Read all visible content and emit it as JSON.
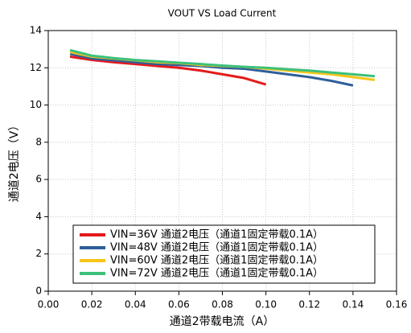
{
  "chart_data": {
    "type": "line",
    "title": "VOUT VS Load Current",
    "xlabel": "通道2带载电流（A）",
    "ylabel": "通道2电压（V）",
    "xlim": [
      0,
      0.16
    ],
    "xticks": [
      {
        "value": 0,
        "label": "0.00"
      },
      {
        "value": 0.02,
        "label": "0.02"
      },
      {
        "value": 0.04,
        "label": "0.04"
      },
      {
        "value": 0.06,
        "label": "0.06"
      },
      {
        "value": 0.08,
        "label": "0.08"
      },
      {
        "value": 0.1,
        "label": "0.10"
      },
      {
        "value": 0.12,
        "label": "0.12"
      },
      {
        "value": 0.14,
        "label": "0.14"
      },
      {
        "value": 0.16,
        "label": "0.16"
      }
    ],
    "ylim": [
      0,
      14
    ],
    "yticks": [
      0,
      2,
      4,
      6,
      8,
      10,
      12,
      14
    ],
    "grid": true,
    "legend": "lower center",
    "series": [
      {
        "name": "VIN=36V 通道2电压（通道1固定带载0.1A）",
        "color": "#e41a1c",
        "x": [
          0.01,
          0.02,
          0.03,
          0.04,
          0.05,
          0.06,
          0.07,
          0.08,
          0.09,
          0.1
        ],
        "values": [
          12.6,
          12.42,
          12.3,
          12.2,
          12.1,
          12.0,
          11.85,
          11.65,
          11.45,
          11.1
        ]
      },
      {
        "name": "VIN=48V 通道2电压（通道1固定带载0.1A）",
        "color": "#2e5f9a",
        "x": [
          0.01,
          0.02,
          0.03,
          0.04,
          0.05,
          0.06,
          0.07,
          0.08,
          0.09,
          0.1,
          0.11,
          0.12,
          0.13,
          0.14
        ],
        "values": [
          12.75,
          12.5,
          12.4,
          12.3,
          12.2,
          12.15,
          12.1,
          12.0,
          11.95,
          11.8,
          11.65,
          11.5,
          11.3,
          11.05
        ]
      },
      {
        "name": "VIN=60V 通道2电压（通道1固定带载0.1A）",
        "color": "#f5c518",
        "x": [
          0.01,
          0.02,
          0.03,
          0.04,
          0.05,
          0.06,
          0.07,
          0.08,
          0.09,
          0.1,
          0.11,
          0.12,
          0.13,
          0.14,
          0.15
        ],
        "values": [
          12.85,
          12.6,
          12.5,
          12.4,
          12.3,
          12.25,
          12.15,
          12.1,
          12.05,
          11.95,
          11.85,
          11.75,
          11.65,
          11.5,
          11.35
        ]
      },
      {
        "name": "VIN=72V 通道2电压（通道1固定带载0.1A）",
        "color": "#3cc07a",
        "x": [
          0.01,
          0.02,
          0.03,
          0.04,
          0.05,
          0.06,
          0.07,
          0.08,
          0.09,
          0.1,
          0.11,
          0.12,
          0.13,
          0.14,
          0.15
        ],
        "values": [
          12.95,
          12.65,
          12.52,
          12.42,
          12.35,
          12.27,
          12.2,
          12.12,
          12.05,
          12.0,
          11.92,
          11.85,
          11.75,
          11.65,
          11.55
        ]
      }
    ]
  }
}
